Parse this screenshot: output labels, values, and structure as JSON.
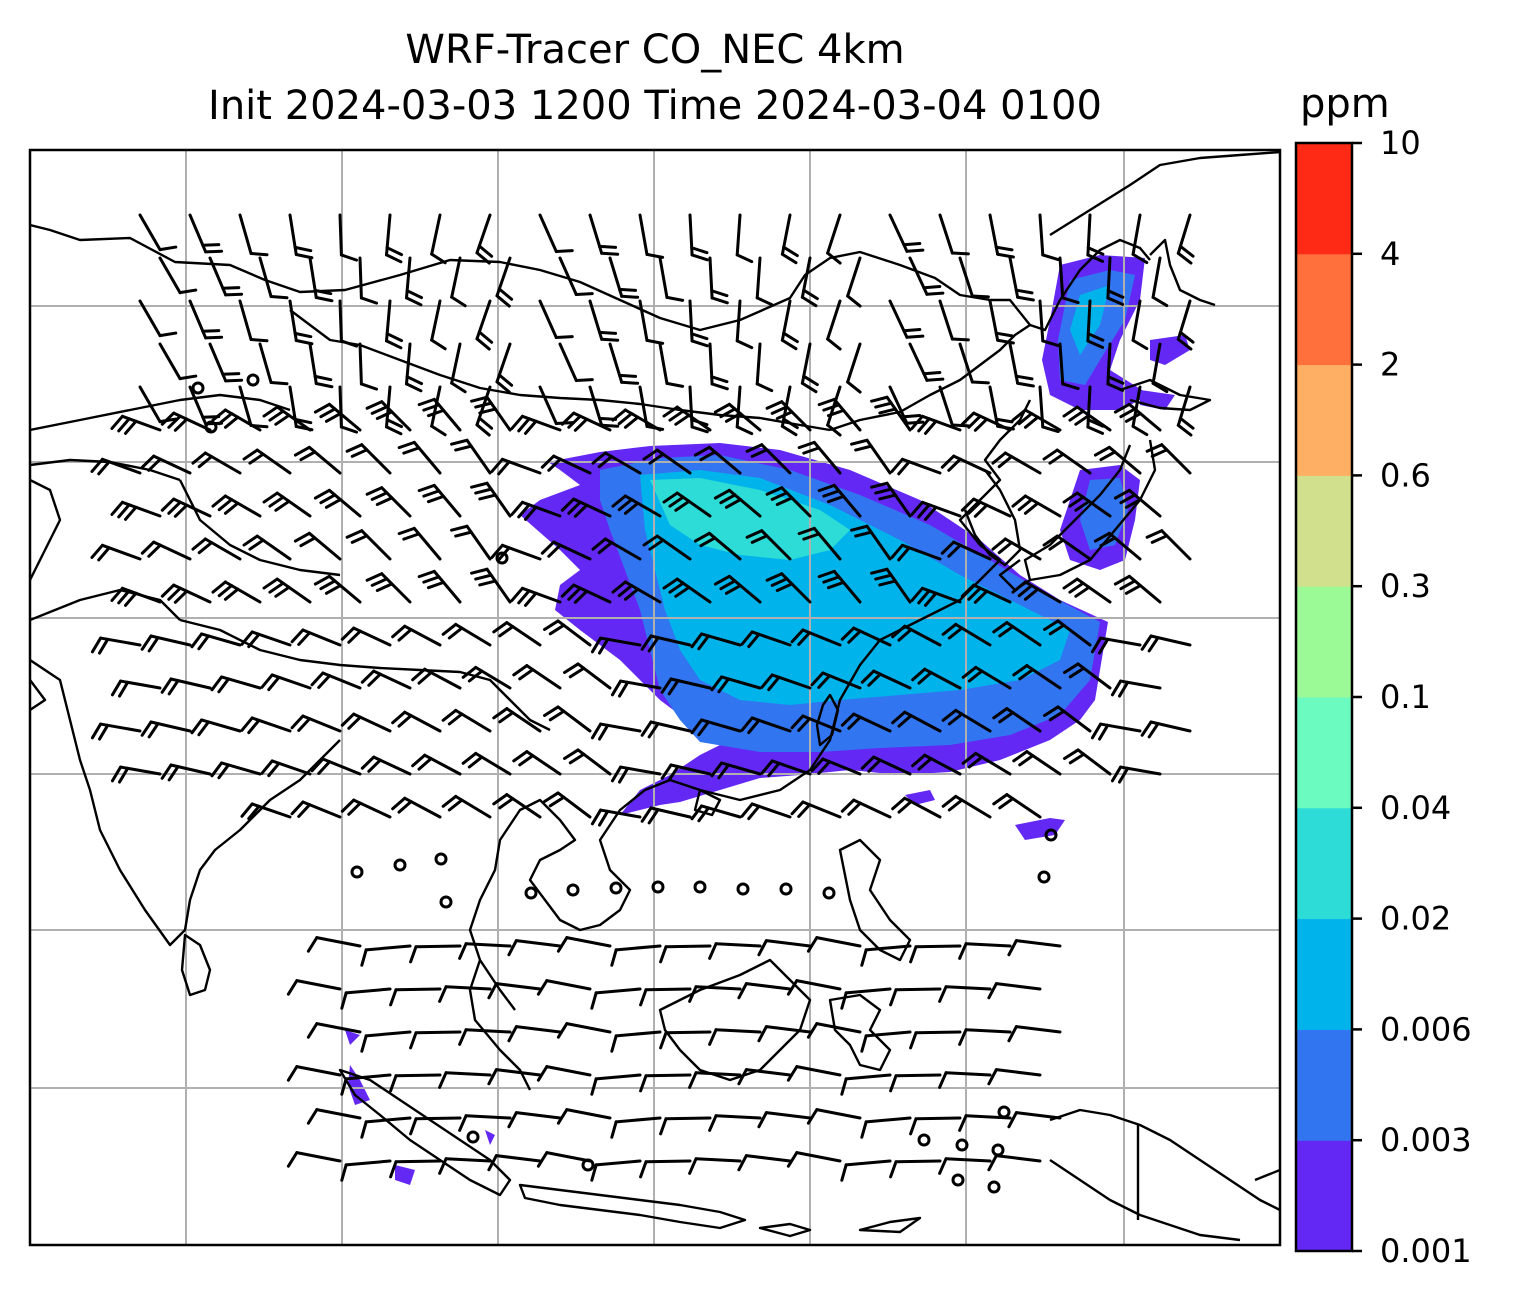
{
  "title": {
    "line1": "WRF-Tracer CO_NEC 4km",
    "line2": "Init 2024-03-03 1200 Time 2024-03-04 0100"
  },
  "colorbar": {
    "unit": "ppm",
    "levels": [
      "0.001",
      "0.003",
      "0.006",
      "0.02",
      "0.04",
      "0.1",
      "0.3",
      "0.6",
      "2",
      "4",
      "10"
    ],
    "colors": [
      "#6428f5",
      "#3275f0",
      "#00b4eb",
      "#2ddcd6",
      "#6bfac0",
      "#9bf996",
      "#d0e08c",
      "#ffaf63",
      "#ff703d",
      "#ff2a16"
    ]
  },
  "map": {
    "gridlines": true,
    "wind_barbs": true,
    "plume_colors": [
      "#6428f5",
      "#3275f0",
      "#00b4eb",
      "#2ddcd6"
    ]
  }
}
